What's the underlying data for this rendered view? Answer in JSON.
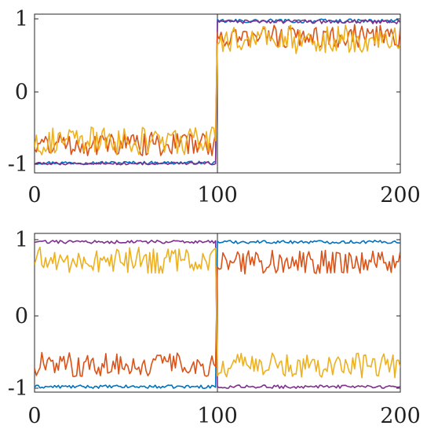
{
  "chart_data": [
    {
      "type": "line",
      "xlim": [
        0,
        200
      ],
      "ylim": [
        -1.1,
        1.1
      ],
      "grid": false,
      "legend": "none",
      "xticks": [
        0,
        100,
        200
      ],
      "xtick_labels": [
        "0",
        "100",
        "200"
      ],
      "yticks": [
        1,
        0,
        -1
      ],
      "ytick_labels": [
        "1",
        "0",
        "-1"
      ],
      "vertical_line_x": 100,
      "series": [
        {
          "color": "#0072BD",
          "before_mean": -0.98,
          "before_amp": 0.012,
          "after_mean": 0.97,
          "after_amp": 0.015
        },
        {
          "color": "#7E2F8E",
          "before_mean": -0.99,
          "before_amp": 0.01,
          "after_mean": 0.96,
          "after_amp": 0.015
        },
        {
          "color": "#D95319",
          "before_mean": -0.72,
          "before_amp": 0.09,
          "after_mean": 0.76,
          "after_amp": 0.09
        },
        {
          "color": "#EDB120",
          "before_mean": -0.68,
          "before_amp": 0.11,
          "after_mean": 0.72,
          "after_amp": 0.11
        }
      ]
    },
    {
      "type": "line",
      "xlim": [
        0,
        200
      ],
      "ylim": [
        -1.1,
        1.1
      ],
      "grid": false,
      "legend": "none",
      "xticks": [
        0,
        100,
        200
      ],
      "xtick_labels": [
        "0",
        "100",
        "200"
      ],
      "yticks": [
        1,
        0,
        -1
      ],
      "ytick_labels": [
        "1",
        "0",
        "-1"
      ],
      "vertical_line_x": 100,
      "series": [
        {
          "color": "#0072BD",
          "before_mean": -0.98,
          "before_amp": 0.012,
          "after_mean": 0.97,
          "after_amp": 0.012
        },
        {
          "color": "#7E2F8E",
          "before_mean": 0.97,
          "before_amp": 0.012,
          "after_mean": -0.98,
          "after_amp": 0.012
        },
        {
          "color": "#D95319",
          "before_mean": -0.68,
          "before_amp": 0.09,
          "after_mean": 0.7,
          "after_amp": 0.09
        },
        {
          "color": "#EDB120",
          "before_mean": 0.72,
          "before_amp": 0.1,
          "after_mean": -0.68,
          "after_amp": 0.1
        }
      ]
    }
  ]
}
